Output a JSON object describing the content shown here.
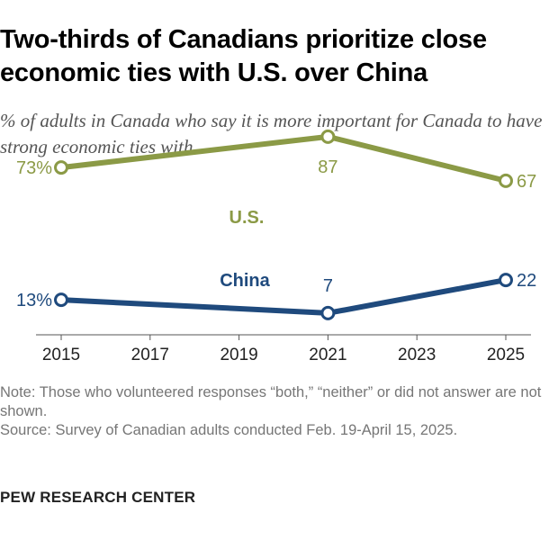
{
  "header": {
    "title": "Two-thirds of Canadians prioritize close economic ties with U.S. over China",
    "subtitle": "% of adults in Canada who say it is more important for Canada to have strong economic ties with ..."
  },
  "footer": {
    "note": "Note: Those who volunteered responses “both,” “neither” or did not answer are not shown.",
    "source": "Source: Survey of Canadian adults conducted Feb. 19-April 15, 2025.",
    "org": "PEW RESEARCH CENTER"
  },
  "chart_data": {
    "type": "line",
    "title": "Two-thirds of Canadians prioritize close economic ties with U.S. over China",
    "subtitle": "% of adults in Canada who say it is more important for Canada to have strong economic ties with ...",
    "x": [
      2015,
      2021,
      2025
    ],
    "x_ticks": [
      "2015",
      "2017",
      "2019",
      "2021",
      "2023",
      "2025"
    ],
    "xlim": [
      2015,
      2025
    ],
    "ylim": [
      0,
      100
    ],
    "grid": false,
    "series": [
      {
        "name": "U.S.",
        "color": "#8b9a46",
        "values": [
          73,
          87,
          67
        ],
        "labels": [
          "73%",
          "87",
          "67"
        ]
      },
      {
        "name": "China",
        "color": "#1f4a7d",
        "values": [
          13,
          7,
          22
        ],
        "labels": [
          "13%",
          "7",
          "22"
        ]
      }
    ]
  }
}
